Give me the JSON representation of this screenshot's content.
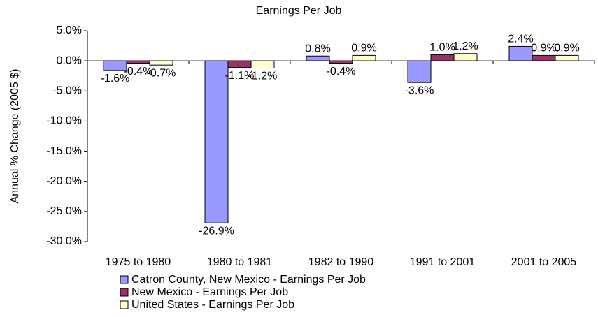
{
  "chart_data": {
    "type": "bar",
    "title": "Earnings Per Job",
    "y_label": "Annual % Change (2005 $)",
    "categories": [
      "1975 to 1980",
      "1980 to 1981",
      "1982 to 1990",
      "1991 to 2001",
      "2001 to 2005"
    ],
    "series": [
      {
        "name": "Catron County, New Mexico - Earnings Per Job",
        "color": "#9999ff",
        "values": [
          -1.6,
          -26.9,
          0.8,
          -3.6,
          2.4
        ],
        "value_labels": [
          "-1.6%",
          "-26.9%",
          "0.8%",
          "-3.6%",
          "2.4%"
        ]
      },
      {
        "name": "New Mexico - Earnings Per Job",
        "color": "#993366",
        "values": [
          -0.4,
          -1.1,
          -0.4,
          1.0,
          0.9
        ],
        "value_labels": [
          "-0.4%",
          "-1.1%",
          "-0.4%",
          "1.0%",
          "0.9%"
        ]
      },
      {
        "name": "United States - Earnings Per Job",
        "color": "#ffffcc",
        "values": [
          -0.7,
          -1.2,
          0.9,
          1.2,
          0.9
        ],
        "value_labels": [
          "-0.7%",
          "-1.2%",
          "0.9%",
          "1.2%",
          "0.9%"
        ]
      }
    ],
    "ylim": [
      -30,
      5
    ],
    "yticks": [
      {
        "value": 5,
        "label": "5.0%"
      },
      {
        "value": 0,
        "label": "0.0%"
      },
      {
        "value": -5,
        "label": "-5.0%"
      },
      {
        "value": -10,
        "label": "-10.0%"
      },
      {
        "value": -15,
        "label": "-15.0%"
      },
      {
        "value": -20,
        "label": "-20.0%"
      },
      {
        "value": -25,
        "label": "-25.0%"
      },
      {
        "value": -30,
        "label": "-30.0%"
      }
    ],
    "grid": false
  }
}
